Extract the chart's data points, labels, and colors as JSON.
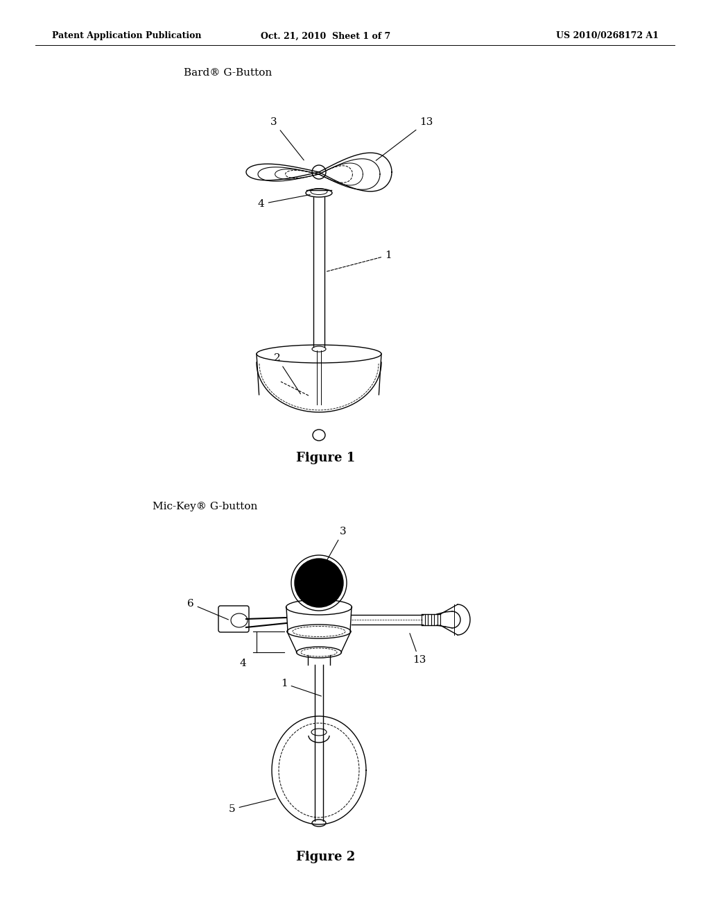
{
  "background_color": "#ffffff",
  "header_left": "Patent Application Publication",
  "header_center": "Oct. 21, 2010  Sheet 1 of 7",
  "header_right": "US 2010/0268172 A1",
  "fig1_label": "Bard® G-Button",
  "fig1_caption": "Figure 1",
  "fig2_label": "Mic-Key® G-button",
  "fig2_caption": "Figure 2",
  "line_color": "#000000",
  "line_width": 1.0
}
